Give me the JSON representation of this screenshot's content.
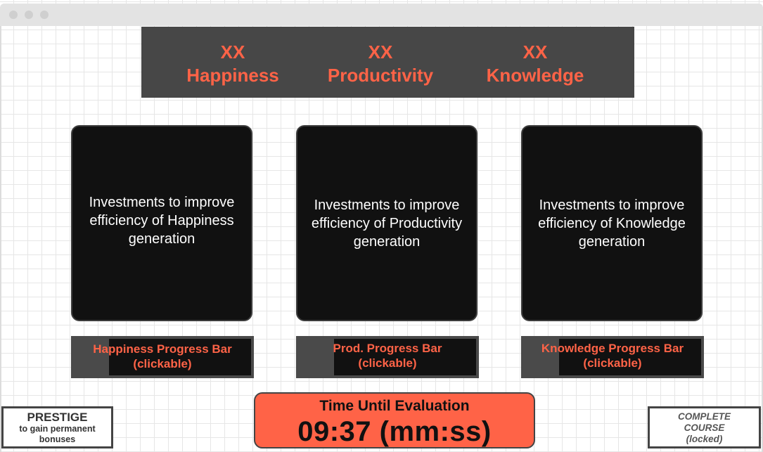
{
  "stats": [
    {
      "value": "XX",
      "label": "Happiness"
    },
    {
      "value": "XX",
      "label": "Productivity"
    },
    {
      "value": "XX",
      "label": "Knowledge"
    }
  ],
  "cards": [
    {
      "text": "Investments to improve efficiency of Happiness generation"
    },
    {
      "text": "Investments to improve efficiency of Productivity generation"
    },
    {
      "text": "Investments to improve efficiency of Knowledge generation"
    }
  ],
  "progress_bars": [
    {
      "label_line1": "Happiness Progress Bar",
      "label_line2": "(clickable)",
      "progress": 0.8
    },
    {
      "label_line1": "Prod. Progress Bar",
      "label_line2": "(clickable)",
      "progress": 0.8
    },
    {
      "label_line1": "Knowledge Progress Bar",
      "label_line2": "(clickable)",
      "progress": 0.8
    }
  ],
  "timer": {
    "label": "Time Until Evaluation",
    "value": "09:37 (mm:ss)"
  },
  "prestige": {
    "title": "PRESTIGE",
    "subtitle": "to gain permanent bonuses"
  },
  "complete_course": {
    "line1": "COMPLETE",
    "line2": "COURSE",
    "line3": "(locked)"
  },
  "colors": {
    "accent": "#ff6347",
    "panel": "#474747",
    "card": "#111111"
  }
}
